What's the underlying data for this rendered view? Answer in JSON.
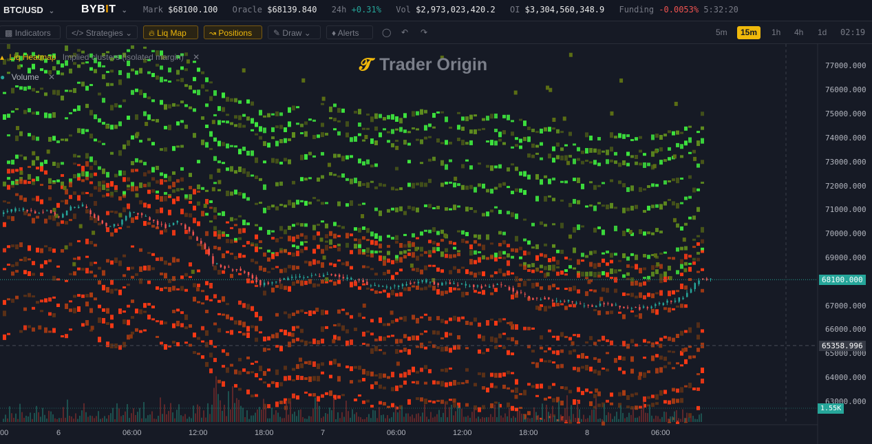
{
  "topbar": {
    "symbol": "BTC/USD",
    "exchange_a": "BYB",
    "exchange_i": "I",
    "exchange_b": "T",
    "mark_label": "Mark",
    "mark_value": "$68100.100",
    "oracle_label": "Oracle",
    "oracle_value": "$68139.840",
    "change_label": "24h",
    "change_value": "+0.31%",
    "vol_label": "Vol",
    "vol_value": "$2,973,023,420.2",
    "oi_label": "OI",
    "oi_value": "$3,304,560,348.9",
    "funding_label": "Funding",
    "funding_value": "-0.0053%",
    "funding_countdown": "5:32:20"
  },
  "toolbar": {
    "indicators": "Indicators",
    "strategies": "Strategies",
    "liq_map": "Liq Map",
    "positions": "Positions",
    "draw": "Draw",
    "alerts": "Alerts",
    "timeframes": [
      "5m",
      "15m",
      "1h",
      "4h",
      "1d"
    ],
    "selected_timeframe": "15m",
    "clock": "02:19"
  },
  "legend": {
    "heatmap_title": "Liq Heatmap",
    "heatmap_desc": "Implied clusters (isolated margin)",
    "volume_title": "Volume"
  },
  "watermark": "Trader Origin",
  "price_axis": {
    "ticks": [
      "77000.000",
      "76000.000",
      "75000.000",
      "74000.000",
      "73000.000",
      "72000.000",
      "71000.000",
      "70000.000",
      "69000.000",
      "68000.000",
      "67000.000",
      "66000.000",
      "65000.000",
      "64000.000",
      "63000.000"
    ],
    "last_price": "68100.000",
    "crosshair_price": "65358.996",
    "volume_label": "1.55K"
  },
  "time_axis": [
    "00",
    "6",
    "06:00",
    "12:00",
    "18:00",
    "7",
    "06:00",
    "12:00",
    "18:00",
    "8",
    "06:00"
  ],
  "colors": {
    "up": "#26a69a",
    "down": "#ef5350",
    "accent": "#f0b90b",
    "short_cluster": "#3ee83e",
    "long_cluster": "#ff3a14"
  },
  "chart_data": {
    "type": "candlestick-heatmap",
    "ylim": [
      62800,
      77600
    ],
    "last_price": 68100,
    "price_path": [
      70800,
      71000,
      71050,
      70900,
      70950,
      70700,
      71100,
      71200,
      70700,
      70300,
      70400,
      70900,
      70800,
      70500,
      70300,
      70500,
      70100,
      69600,
      68800,
      68600,
      68500,
      68300,
      67900,
      68000,
      68100,
      68200,
      68250,
      68250,
      68300,
      68150,
      68100,
      67900,
      67800,
      67800,
      67900,
      68000,
      68050,
      67900,
      67950,
      67900,
      67800,
      67800,
      67900,
      67700,
      67500,
      67300,
      67300,
      67200,
      67200,
      67050,
      67000,
      67100,
      67000,
      66900,
      66900,
      67000,
      67150,
      67200,
      67500,
      68100
    ],
    "short_liq_bands": [
      75200,
      74600,
      74100,
      73200,
      72300,
      71300,
      70300,
      69500
    ],
    "long_liq_bands": [
      69900,
      69300,
      68700,
      67900,
      66700,
      66000,
      65500,
      64500,
      64000,
      63200
    ]
  }
}
